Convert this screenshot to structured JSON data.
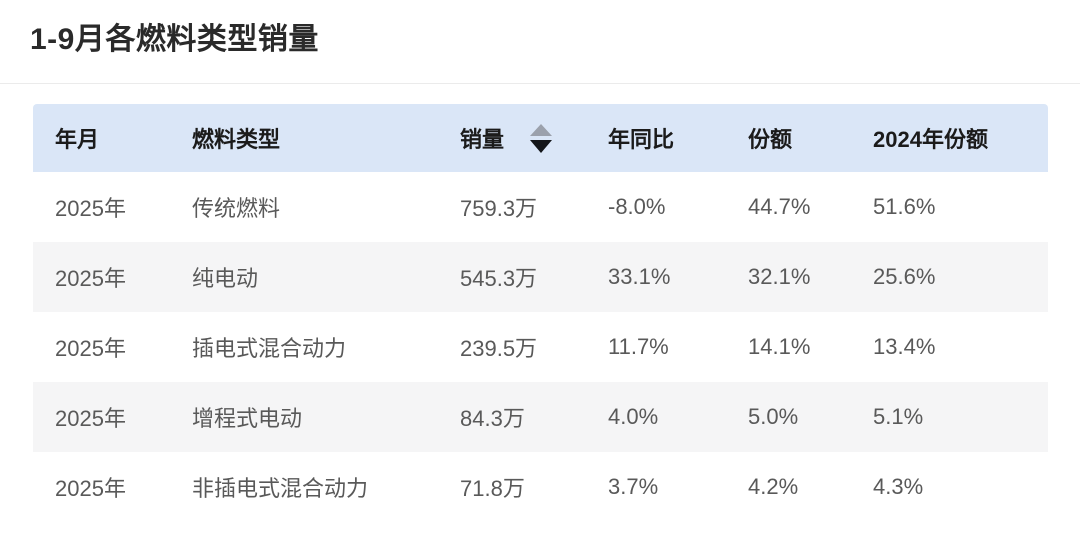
{
  "page": {
    "title": "1-9月各燃料类型销量"
  },
  "table": {
    "columns": [
      {
        "label": "年月"
      },
      {
        "label": "燃料类型"
      },
      {
        "label": "销量"
      },
      {
        "label": "年同比"
      },
      {
        "label": "份额"
      },
      {
        "label": "2024年份额"
      }
    ],
    "sort": {
      "column": "销量",
      "direction": "desc"
    },
    "rows": [
      [
        "2025年",
        "传统燃料",
        "759.3万",
        "-8.0%",
        "44.7%",
        "51.6%"
      ],
      [
        "2025年",
        "纯电动",
        "545.3万",
        "33.1%",
        "32.1%",
        "25.6%"
      ],
      [
        "2025年",
        "插电式混合动力",
        "239.5万",
        "11.7%",
        "14.1%",
        "13.4%"
      ],
      [
        "2025年",
        "增程式电动",
        "84.3万",
        "4.0%",
        "5.0%",
        "5.1%"
      ],
      [
        "2025年",
        "非插电式混合动力",
        "71.8万",
        "3.7%",
        "4.2%",
        "4.3%"
      ]
    ]
  },
  "colors": {
    "header_bg": "#dae6f7",
    "row_alt_bg": "#f5f5f6",
    "sort_arrow_inactive": "#9ba1ac",
    "sort_arrow_active": "#14161a"
  }
}
